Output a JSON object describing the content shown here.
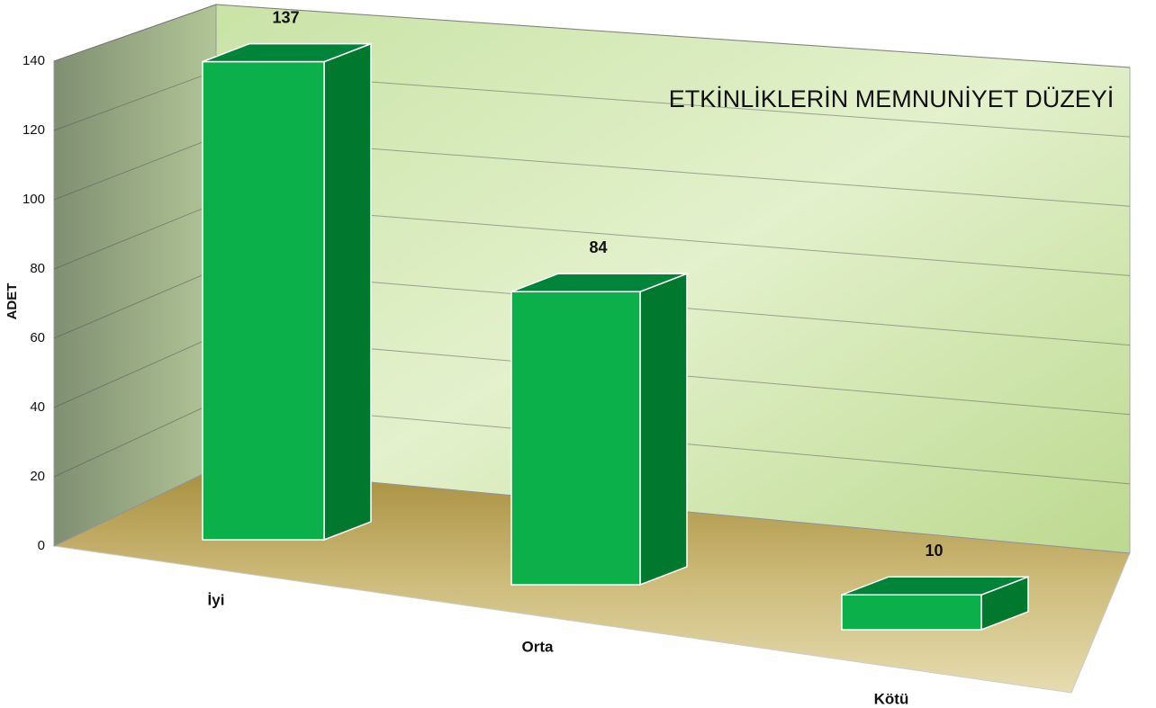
{
  "chart_data": {
    "type": "bar3d",
    "title": "ETKİNLİKLERİN MEMNUNİYET DÜZEYİ",
    "y_label": "ADET",
    "categories": [
      "İyi",
      "Orta",
      "Kötü"
    ],
    "values": [
      137,
      84,
      10
    ],
    "color": "#0cb04a",
    "ylim": [
      0,
      140
    ],
    "yticks": [
      0,
      20,
      40,
      60,
      80,
      100,
      120,
      140
    ],
    "grid": true
  }
}
